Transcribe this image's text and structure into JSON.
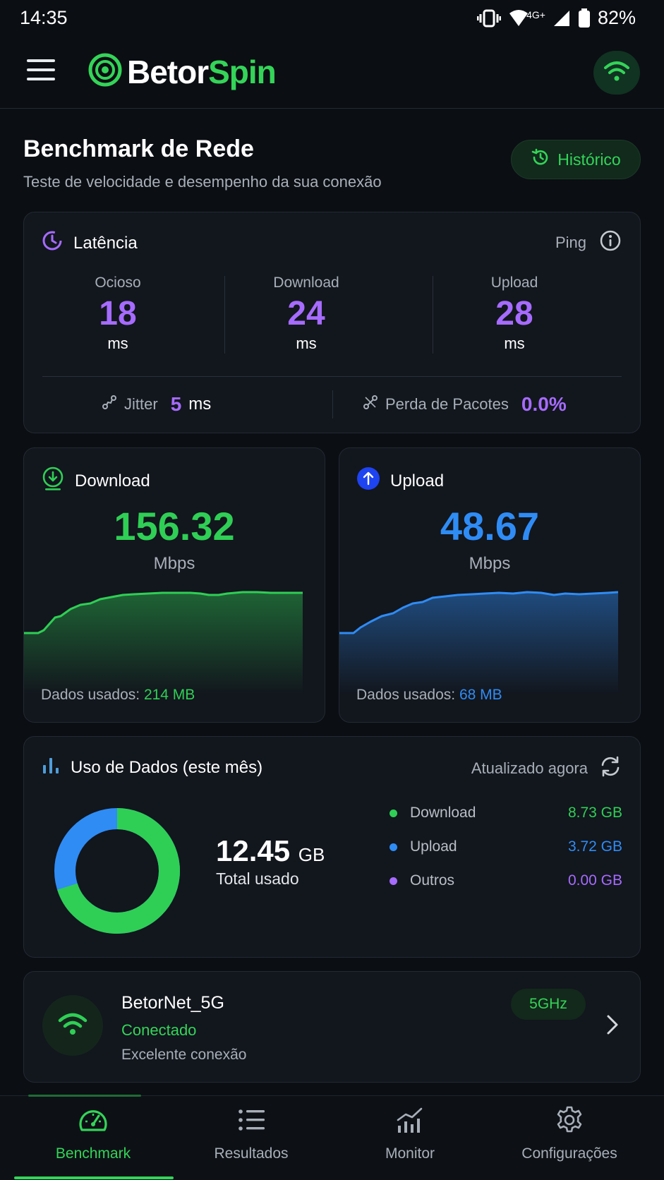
{
  "status_bar": {
    "time": "14:35",
    "network_type": "4G+",
    "battery": "82%"
  },
  "app": {
    "brand_first": "Betor",
    "brand_second": "Spin"
  },
  "page": {
    "title": "Benchmark de Rede",
    "subtitle": "Teste de velocidade e desempenho da sua conexão",
    "history_label": "Histórico"
  },
  "latency": {
    "title": "Latência",
    "ping_label": "Ping",
    "columns": [
      {
        "label": "Ocioso",
        "value": "18",
        "unit": "ms"
      },
      {
        "label": "Download",
        "value": "24",
        "unit": "ms"
      },
      {
        "label": "Upload",
        "value": "28",
        "unit": "ms"
      }
    ],
    "jitter_label": "Jitter",
    "jitter_value": "5",
    "jitter_unit": "ms",
    "loss_label": "Perda de Pacotes",
    "loss_value": "0.0%"
  },
  "download": {
    "title": "Download",
    "value": "156.32",
    "unit": "Mbps",
    "data_label": "Dados usados:",
    "data_value": "214 MB",
    "color": "#2fcf55"
  },
  "upload": {
    "title": "Upload",
    "value": "48.67",
    "unit": "Mbps",
    "data_label": "Dados usados:",
    "data_value": "68 MB",
    "color": "#2f8cf5"
  },
  "usage": {
    "title": "Uso de Dados (este mês)",
    "updated_label": "Atualizado agora",
    "total_value": "12.45",
    "total_unit": "GB",
    "total_label": "Total usado",
    "legend": [
      {
        "name": "Download",
        "value": "8.73 GB",
        "color": "#2fcf55"
      },
      {
        "name": "Upload",
        "value": "3.72 GB",
        "color": "#2f8cf5"
      },
      {
        "name": "Outros",
        "value": "0.00 GB",
        "color": "#a66bff"
      }
    ]
  },
  "network": {
    "name": "BetorNet_5G",
    "status": "Conectado",
    "quality": "Excelente conexão",
    "band": "5GHz"
  },
  "nav": [
    {
      "label": "Benchmark",
      "icon": "speedometer-icon",
      "active": true
    },
    {
      "label": "Resultados",
      "icon": "list-icon",
      "active": false
    },
    {
      "label": "Monitor",
      "icon": "chart-icon",
      "active": false
    },
    {
      "label": "Configurações",
      "icon": "gear-icon",
      "active": false
    }
  ]
}
